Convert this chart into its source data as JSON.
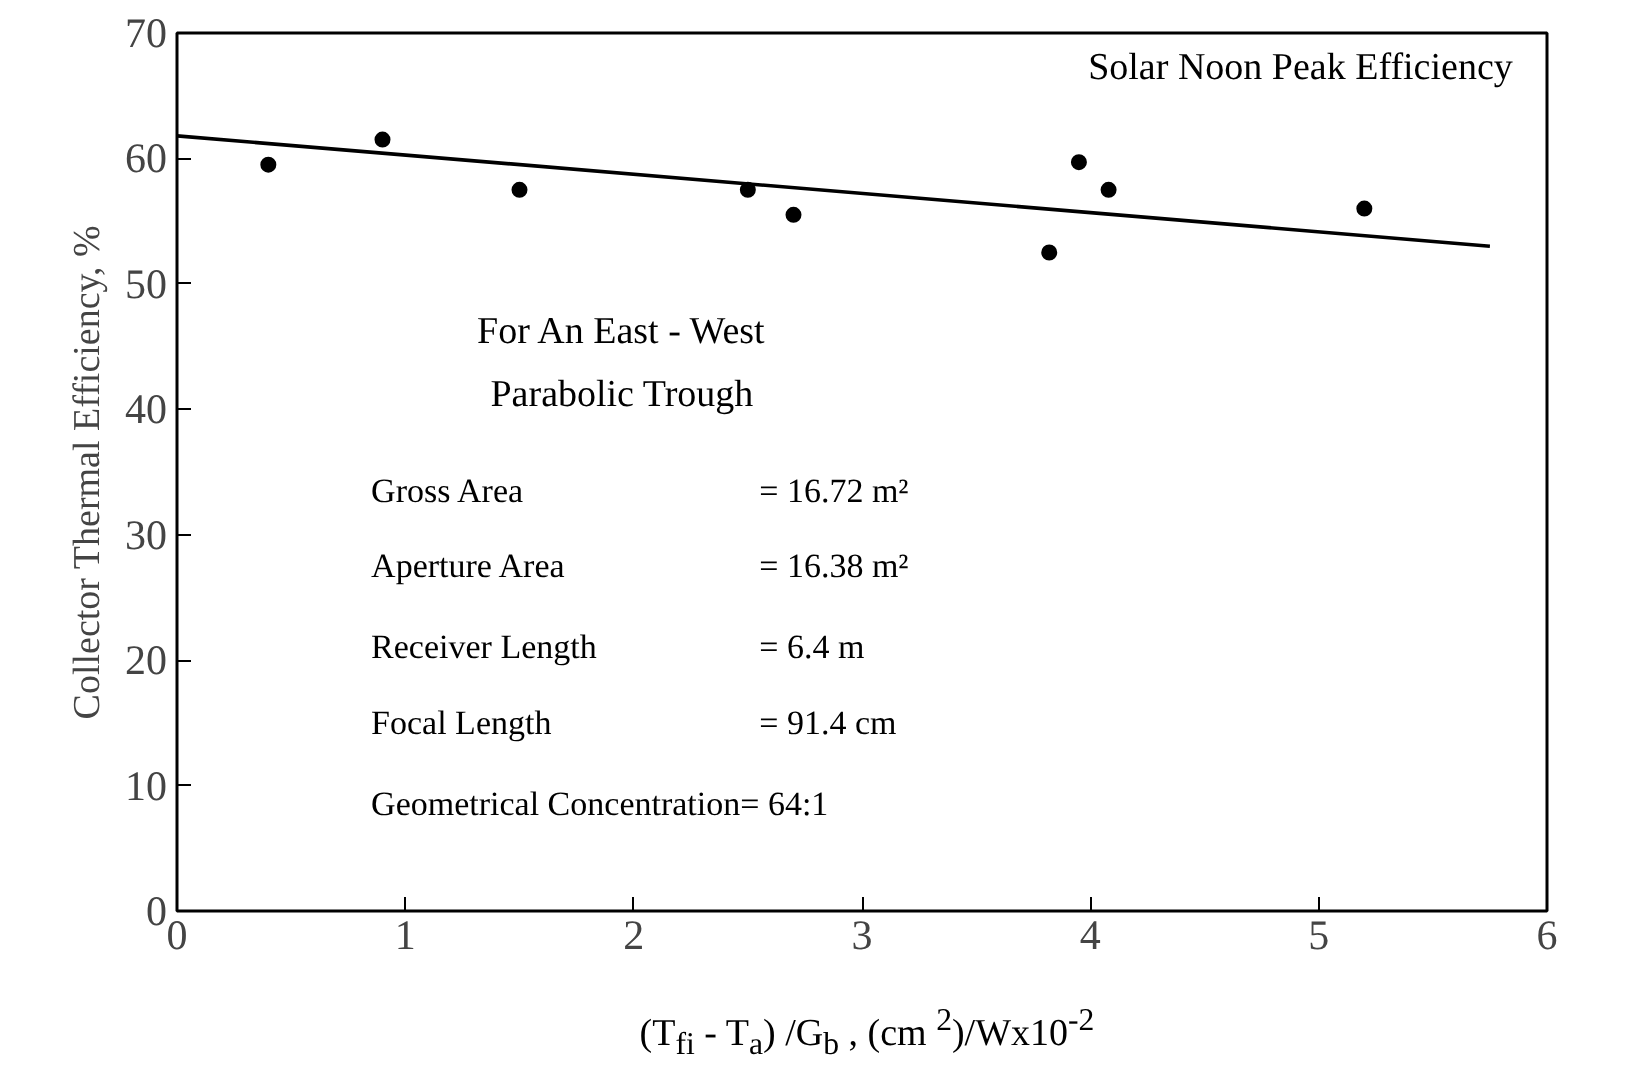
{
  "chart_data": {
    "type": "scatter",
    "xlabel": "(T$_{fi}$ - T$_{a}$) /G$_{b}$ , (cm $^{2}$)/Wx10$^{-2}$",
    "ylabel": "Collector Thermal Efficiency, %",
    "xlim": [
      0,
      6
    ],
    "ylim": [
      0,
      70
    ],
    "xticks": [
      0,
      1,
      2,
      3,
      4,
      5,
      6
    ],
    "yticks": [
      0,
      10,
      20,
      30,
      40,
      50,
      60,
      70
    ],
    "grid": false,
    "series": [
      {
        "color": "#000000",
        "marker": "circle",
        "x": [
          0.4,
          0.9,
          1.5,
          2.5,
          2.7,
          3.82,
          3.95,
          4.08,
          5.2
        ],
        "values": [
          59.5,
          61.5,
          57.5,
          57.5,
          55.5,
          52.5,
          59.7,
          57.5,
          56
        ]
      },
      {
        "type": "line",
        "color": "#000000",
        "x": [
          0,
          5.75
        ],
        "values": [
          61.8,
          53.0
        ],
        "line_style": "solid"
      }
    ],
    "annotations": [
      "Solar Noon Peak Efficiency",
      "For An East - West",
      "Parabolic Trough",
      "Gross Area",
      "= 16.72 m²",
      "Aperture Area",
      "= 16.38 m²",
      "Receiver Length",
      "= 6.4 m",
      "Focal Length",
      "= 91.4 cm",
      "Geometrical Concentration= 64:1"
    ]
  }
}
